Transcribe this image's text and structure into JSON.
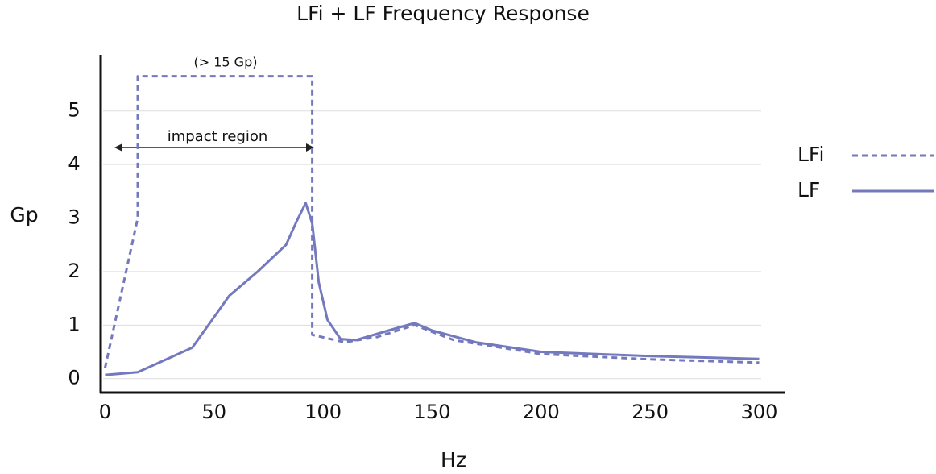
{
  "chart_data": {
    "type": "line",
    "title": "LFi + LF Frequency Response",
    "xlabel": "Hz",
    "ylabel": "Gp",
    "xlim": [
      -2,
      312
    ],
    "ylim": [
      -0.26,
      6.05
    ],
    "xticks": [
      0,
      50,
      100,
      150,
      200,
      250,
      300
    ],
    "yticks": [
      0,
      1,
      2,
      3,
      4,
      5
    ],
    "grid": true,
    "legend": "right",
    "annotations": [
      "(> 15 Gp)",
      "impact region"
    ],
    "series": [
      {
        "name": "LFi",
        "color": "#7479bd",
        "dashed": true,
        "x": [
          0,
          15,
          15,
          95,
          95,
          110,
          125,
          142,
          160,
          200,
          250,
          300
        ],
        "values": [
          0.2,
          3.0,
          5.65,
          5.65,
          0.82,
          0.68,
          0.78,
          1.0,
          0.72,
          0.46,
          0.36,
          0.3
        ]
      },
      {
        "name": "LF",
        "color": "#7479bd",
        "dashed": false,
        "x": [
          0,
          15,
          40,
          57,
          70,
          83,
          88,
          92,
          95,
          98,
          102,
          108,
          115,
          130,
          142,
          150,
          170,
          200,
          250,
          300
        ],
        "values": [
          0.07,
          0.12,
          0.58,
          1.55,
          2.0,
          2.5,
          2.95,
          3.28,
          2.9,
          1.8,
          1.1,
          0.74,
          0.72,
          0.9,
          1.04,
          0.9,
          0.68,
          0.5,
          0.42,
          0.37
        ]
      }
    ]
  }
}
